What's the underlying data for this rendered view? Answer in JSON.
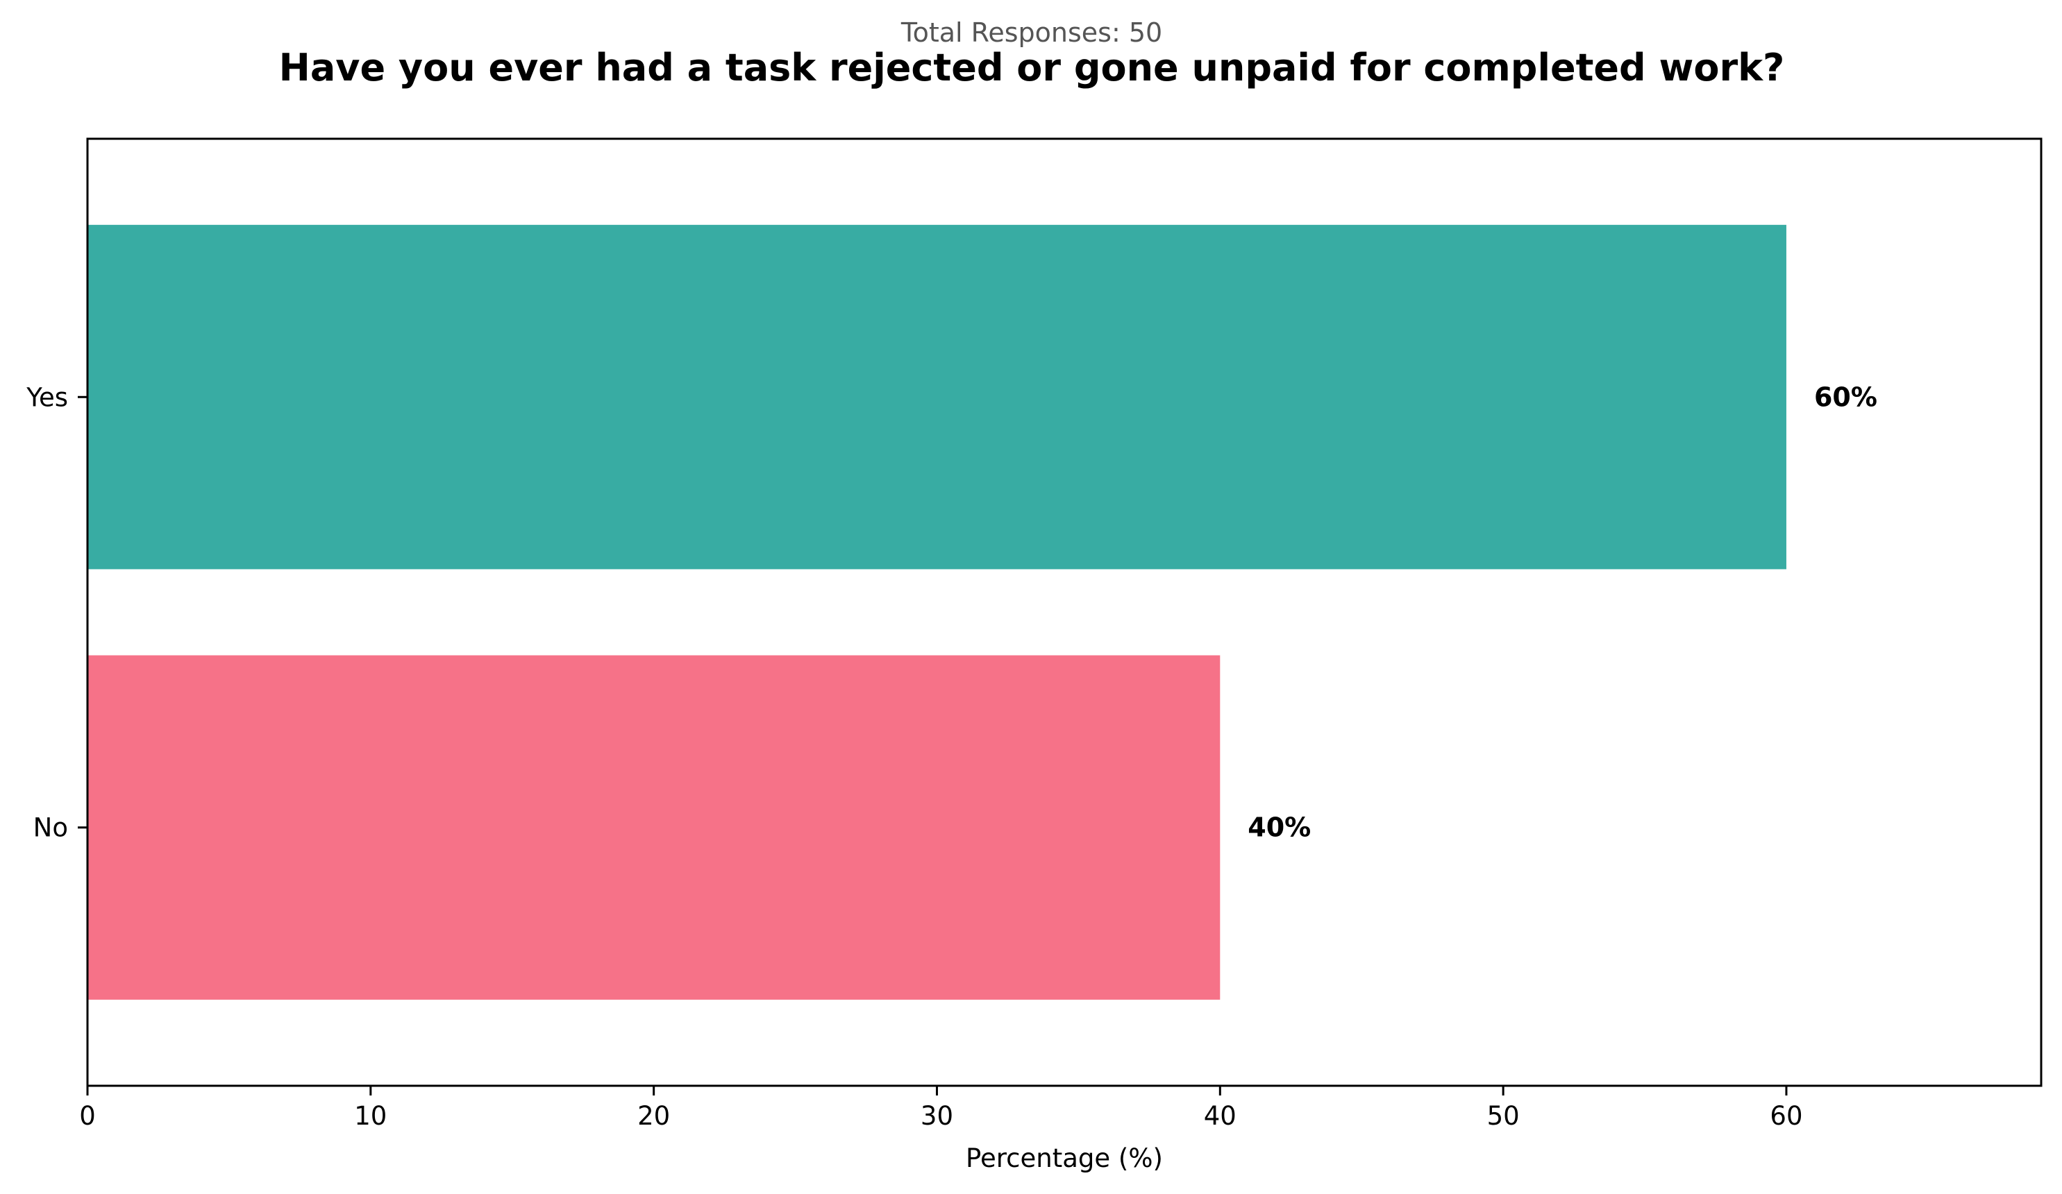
{
  "chart_data": {
    "type": "bar",
    "orientation": "horizontal",
    "subtitle": "Total Responses: 50",
    "title": "Have you ever had a task rejected or gone unpaid for completed work?",
    "xlabel": "Percentage (%)",
    "ylabel": "",
    "categories": [
      "Yes",
      "No"
    ],
    "values": [
      60,
      40
    ],
    "value_labels": [
      "60%",
      "40%"
    ],
    "colors": [
      "#38aca3",
      "#f67288"
    ],
    "xlim": [
      0,
      69
    ],
    "xticks": [
      0,
      10,
      20,
      30,
      40,
      50,
      60
    ],
    "xtick_labels": [
      "0",
      "10",
      "20",
      "30",
      "40",
      "50",
      "60"
    ],
    "grid": false,
    "legend": "none"
  }
}
